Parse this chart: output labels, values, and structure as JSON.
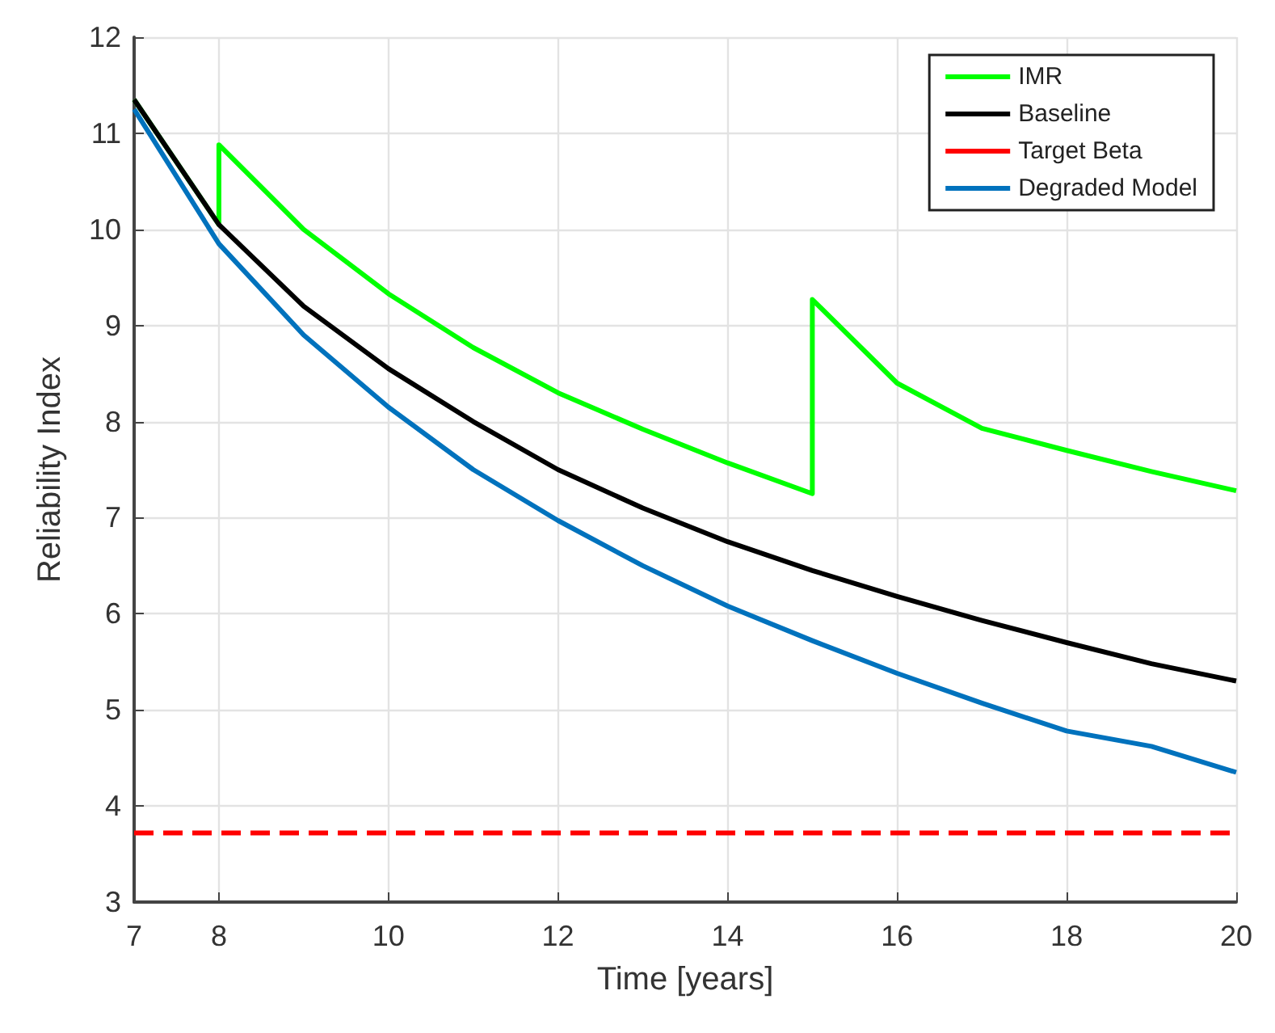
{
  "chart_data": {
    "type": "line",
    "xlabel": "Time [years]",
    "ylabel": "Reliability Index",
    "xlim": [
      7,
      20
    ],
    "xticks": [
      7,
      8,
      10,
      12,
      14,
      16,
      18,
      20
    ],
    "ylim": [
      3,
      12
    ],
    "yticks": [
      3,
      4,
      5,
      6,
      7,
      8,
      9,
      10,
      11,
      12
    ],
    "grid": true,
    "legend": "top right",
    "marker": "none",
    "series": [
      {
        "name": "IMR",
        "color": "#00ff00",
        "x": [
          7,
          8,
          8,
          9,
          10,
          11,
          12,
          13,
          14,
          15,
          15,
          16,
          17,
          18,
          19,
          20
        ],
        "values": [
          11.35,
          10.05,
          10.88,
          10.0,
          9.33,
          8.77,
          8.3,
          7.92,
          7.57,
          7.25,
          9.27,
          8.4,
          7.93,
          7.7,
          7.48,
          7.28
        ]
      },
      {
        "name": "Baseline",
        "color": "#000000",
        "x": [
          7,
          8,
          9,
          10,
          11,
          12,
          13,
          14,
          15,
          16,
          17,
          18,
          19,
          20
        ],
        "values": [
          11.35,
          10.05,
          9.2,
          8.55,
          8.0,
          7.5,
          7.1,
          6.75,
          6.45,
          6.18,
          5.93,
          5.7,
          5.48,
          5.3
        ]
      },
      {
        "name": "Target Beta",
        "color": "#ff0000",
        "line_style": "dashed",
        "x": [
          7,
          20
        ],
        "values": [
          3.72,
          3.72
        ]
      },
      {
        "name": "Degraded Model",
        "color": "#0072bd",
        "x": [
          7,
          8,
          9,
          10,
          11,
          12,
          13,
          14,
          15,
          16,
          17,
          18,
          19,
          20
        ],
        "values": [
          11.25,
          9.85,
          8.9,
          8.15,
          7.5,
          6.97,
          6.5,
          6.08,
          5.72,
          5.38,
          5.07,
          4.78,
          4.62,
          4.35
        ]
      }
    ]
  }
}
